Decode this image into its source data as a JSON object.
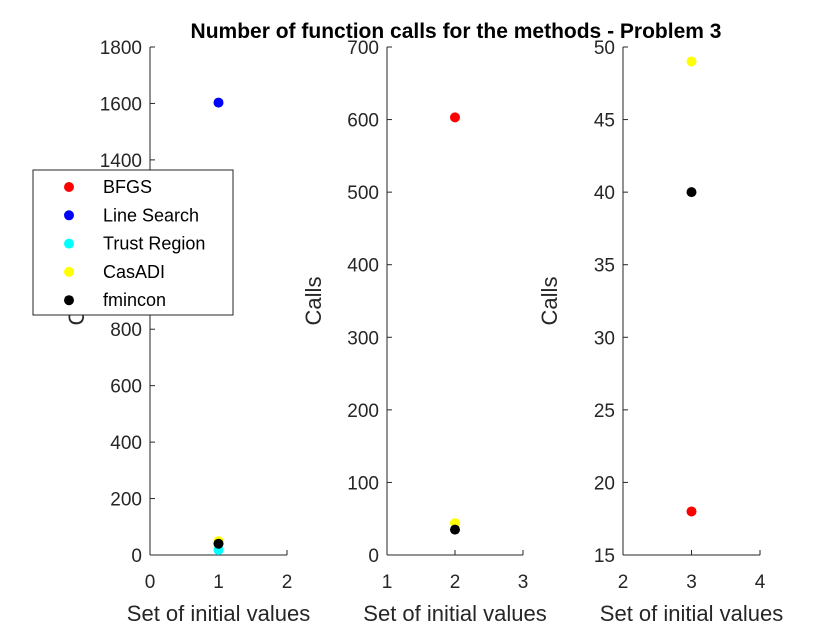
{
  "title": "Number of function calls for the methods - Problem 3",
  "chart_data": [
    {
      "type": "scatter",
      "xlabel": "Set of initial values",
      "ylabel": "Calls",
      "xlim": [
        0,
        2
      ],
      "ylim": [
        0,
        1800
      ],
      "xticks": [
        0,
        1,
        2
      ],
      "yticks": [
        0,
        200,
        400,
        600,
        800,
        1000,
        1200,
        1400,
        1600,
        1800
      ],
      "series": [
        {
          "name": "BFGS",
          "color": "#ff0000",
          "points": [
            [
              1,
              42
            ]
          ]
        },
        {
          "name": "Line Search",
          "color": "#0000ff",
          "points": [
            [
              1,
              1603
            ]
          ]
        },
        {
          "name": "Trust Region",
          "color": "#00ffff",
          "points": [
            [
              1,
              18
            ]
          ]
        },
        {
          "name": "CasADI",
          "color": "#ffff00",
          "points": [
            [
              1,
              49
            ]
          ]
        },
        {
          "name": "fmincon",
          "color": "#000000",
          "points": [
            [
              1,
              40
            ]
          ]
        }
      ]
    },
    {
      "type": "scatter",
      "xlabel": "Set of initial values",
      "ylabel": "Calls",
      "xlim": [
        1,
        3
      ],
      "ylim": [
        0,
        700
      ],
      "xticks": [
        1,
        2,
        3
      ],
      "yticks": [
        0,
        100,
        200,
        300,
        400,
        500,
        600,
        700
      ],
      "series": [
        {
          "name": "BFGS",
          "color": "#ff0000",
          "points": [
            [
              2,
              603
            ]
          ]
        },
        {
          "name": "CasADI",
          "color": "#ffff00",
          "points": [
            [
              2,
              44
            ]
          ]
        },
        {
          "name": "fmincon",
          "color": "#000000",
          "points": [
            [
              2,
              35
            ]
          ]
        }
      ]
    },
    {
      "type": "scatter",
      "xlabel": "Set of initial values",
      "ylabel": "Calls",
      "xlim": [
        2,
        4
      ],
      "ylim": [
        15,
        50
      ],
      "xticks": [
        2,
        3,
        4
      ],
      "yticks": [
        15,
        20,
        25,
        30,
        35,
        40,
        45,
        50
      ],
      "series": [
        {
          "name": "BFGS",
          "color": "#ff0000",
          "points": [
            [
              3,
              18
            ]
          ]
        },
        {
          "name": "CasADI",
          "color": "#ffff00",
          "points": [
            [
              3,
              49
            ]
          ]
        },
        {
          "name": "fmincon",
          "color": "#000000",
          "points": [
            [
              3,
              40
            ]
          ]
        }
      ]
    }
  ],
  "legend": {
    "placement": "left",
    "entries": [
      {
        "label": "BFGS",
        "color": "#ff0000"
      },
      {
        "label": "Line Search",
        "color": "#0000ff"
      },
      {
        "label": "Trust Region",
        "color": "#00ffff"
      },
      {
        "label": "CasADI",
        "color": "#ffff00"
      },
      {
        "label": "fmincon",
        "color": "#000000"
      }
    ]
  }
}
